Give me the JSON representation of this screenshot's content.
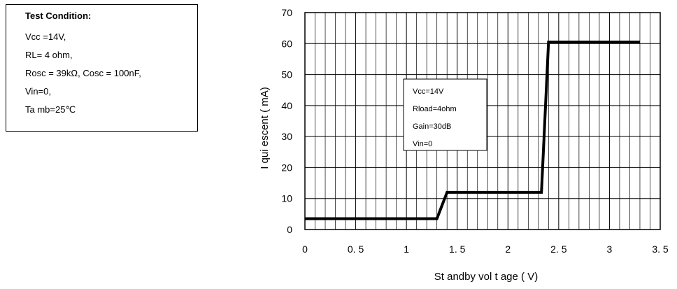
{
  "test_condition": {
    "title": "Test Condition:",
    "lines": [
      "Vcc =14V,",
      "RL= 4 ohm,",
      "Rosc = 39kΩ, Cosc = 100nF,",
      "Vin=0,",
      "Ta mb=25℃"
    ]
  },
  "chart_data": {
    "type": "line",
    "xlabel": "St andby  vol t age  ( V)",
    "ylabel": "I qui escent   ( mA)",
    "xlim": [
      0,
      3.5
    ],
    "ylim": [
      0,
      70
    ],
    "x_ticks": [
      "0",
      "0. 5",
      "1",
      "1. 5",
      "2",
      "2. 5",
      "3",
      "3. 5"
    ],
    "y_ticks": [
      "0",
      "10",
      "20",
      "30",
      "40",
      "50",
      "60",
      "70"
    ],
    "grid": true,
    "series": [
      {
        "color": "#000000",
        "x": [
          0,
          1.3,
          1.4,
          2.33,
          2.4,
          3.3
        ],
        "y": [
          3.5,
          3.5,
          12,
          12,
          60.5,
          60.5
        ]
      }
    ],
    "annotation_lines": [
      "Vcc=14V",
      "Rload=4ohm",
      "Gain=30dB",
      "Vin=0"
    ]
  }
}
